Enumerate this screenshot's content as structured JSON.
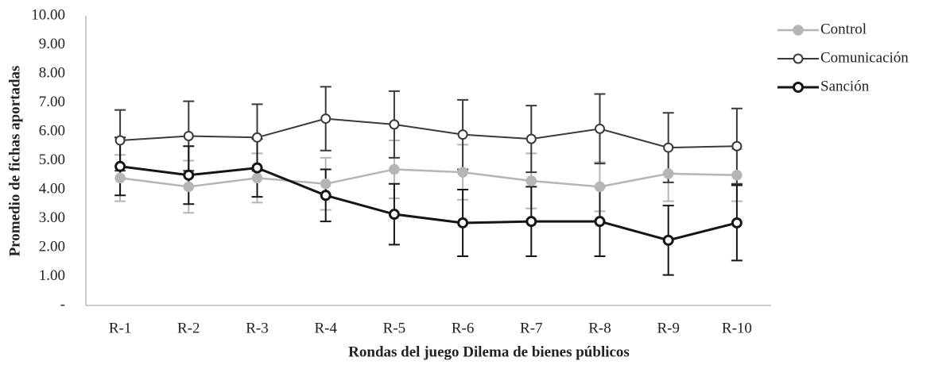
{
  "chart_data": {
    "type": "line",
    "x_label": "Rondas del juego Dilema de bienes públicos",
    "y_label": "Promedio de fichas aportadas",
    "categories": [
      "R-1",
      "R-2",
      "R-3",
      "R-4",
      "R-5",
      "R-6",
      "R-7",
      "R-8",
      "R-9",
      "R-10"
    ],
    "ylim": [
      0,
      10
    ],
    "yticks": [
      {
        "value": 0,
        "label": "-"
      },
      {
        "value": 1,
        "label": "1.00"
      },
      {
        "value": 2,
        "label": "2.00"
      },
      {
        "value": 3,
        "label": "3.00"
      },
      {
        "value": 4,
        "label": "4.00"
      },
      {
        "value": 5,
        "label": "5.00"
      },
      {
        "value": 6,
        "label": "6.00"
      },
      {
        "value": 7,
        "label": "7.00"
      },
      {
        "value": 8,
        "label": "8.00"
      },
      {
        "value": 9,
        "label": "9.00"
      },
      {
        "value": 10,
        "label": "10.00"
      }
    ],
    "grid": false,
    "legend": "top-right",
    "series": [
      {
        "name": "Control",
        "color": "#b5b5b5",
        "marker_fill": "#b5b5b5",
        "values": [
          4.4,
          4.1,
          4.4,
          4.2,
          4.7,
          4.6,
          4.3,
          4.1,
          4.55,
          4.5
        ],
        "errors": [
          0.8,
          0.9,
          0.85,
          0.9,
          1.0,
          0.95,
          0.95,
          0.85,
          0.95,
          0.9
        ]
      },
      {
        "name": "Comunicación",
        "color": "#3a3a3a",
        "marker_fill": "#ffffff",
        "values": [
          5.7,
          5.85,
          5.8,
          6.45,
          6.25,
          5.9,
          5.75,
          6.1,
          5.45,
          5.5
        ],
        "errors": [
          1.05,
          1.2,
          1.15,
          1.1,
          1.15,
          1.2,
          1.15,
          1.2,
          1.2,
          1.3
        ]
      },
      {
        "name": "Sanción",
        "color": "#151515",
        "marker_fill": "#ffffff",
        "values": [
          4.8,
          4.5,
          4.75,
          3.8,
          3.15,
          2.85,
          2.9,
          2.9,
          2.25,
          2.85
        ],
        "errors": [
          1.0,
          1.0,
          1.0,
          0.9,
          1.05,
          1.15,
          1.2,
          1.2,
          1.2,
          1.3
        ]
      }
    ]
  }
}
